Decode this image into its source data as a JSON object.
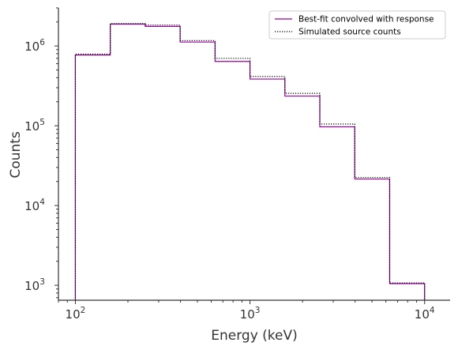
{
  "chart_data": {
    "type": "line",
    "xlabel": "Energy (keV)",
    "ylabel": "Counts",
    "xscale": "log",
    "yscale": "log",
    "xlim": [
      80,
      14000
    ],
    "ylim": [
      650,
      3000000
    ],
    "x_ticks": [
      {
        "base": "10",
        "exp": "2",
        "value": 100
      },
      {
        "base": "10",
        "exp": "3",
        "value": 1000
      },
      {
        "base": "10",
        "exp": "4",
        "value": 10000
      }
    ],
    "y_ticks": [
      {
        "base": "10",
        "exp": "3",
        "value": 1000
      },
      {
        "base": "10",
        "exp": "4",
        "value": 10000
      },
      {
        "base": "10",
        "exp": "5",
        "value": 100000
      },
      {
        "base": "10",
        "exp": "6",
        "value": 1000000
      }
    ],
    "bin_edges": [
      100,
      158.5,
      251.2,
      398.1,
      631,
      1000,
      1585,
      2512,
      3981,
      6310,
      10000
    ],
    "series": [
      {
        "name": "Best-fit convolved with response",
        "color": "#990099",
        "linestyle": "solid",
        "values": [
          770000,
          1880000,
          1760000,
          1120000,
          640000,
          385000,
          235000,
          97000,
          21500,
          1050
        ]
      },
      {
        "name": "Simulated source counts",
        "color": "#000000",
        "linestyle": "dotted",
        "values": [
          790000,
          1910000,
          1830000,
          1170000,
          700000,
          415000,
          255000,
          105000,
          22500,
          1070
        ]
      }
    ],
    "legend_position": "upper right",
    "grid": false
  }
}
